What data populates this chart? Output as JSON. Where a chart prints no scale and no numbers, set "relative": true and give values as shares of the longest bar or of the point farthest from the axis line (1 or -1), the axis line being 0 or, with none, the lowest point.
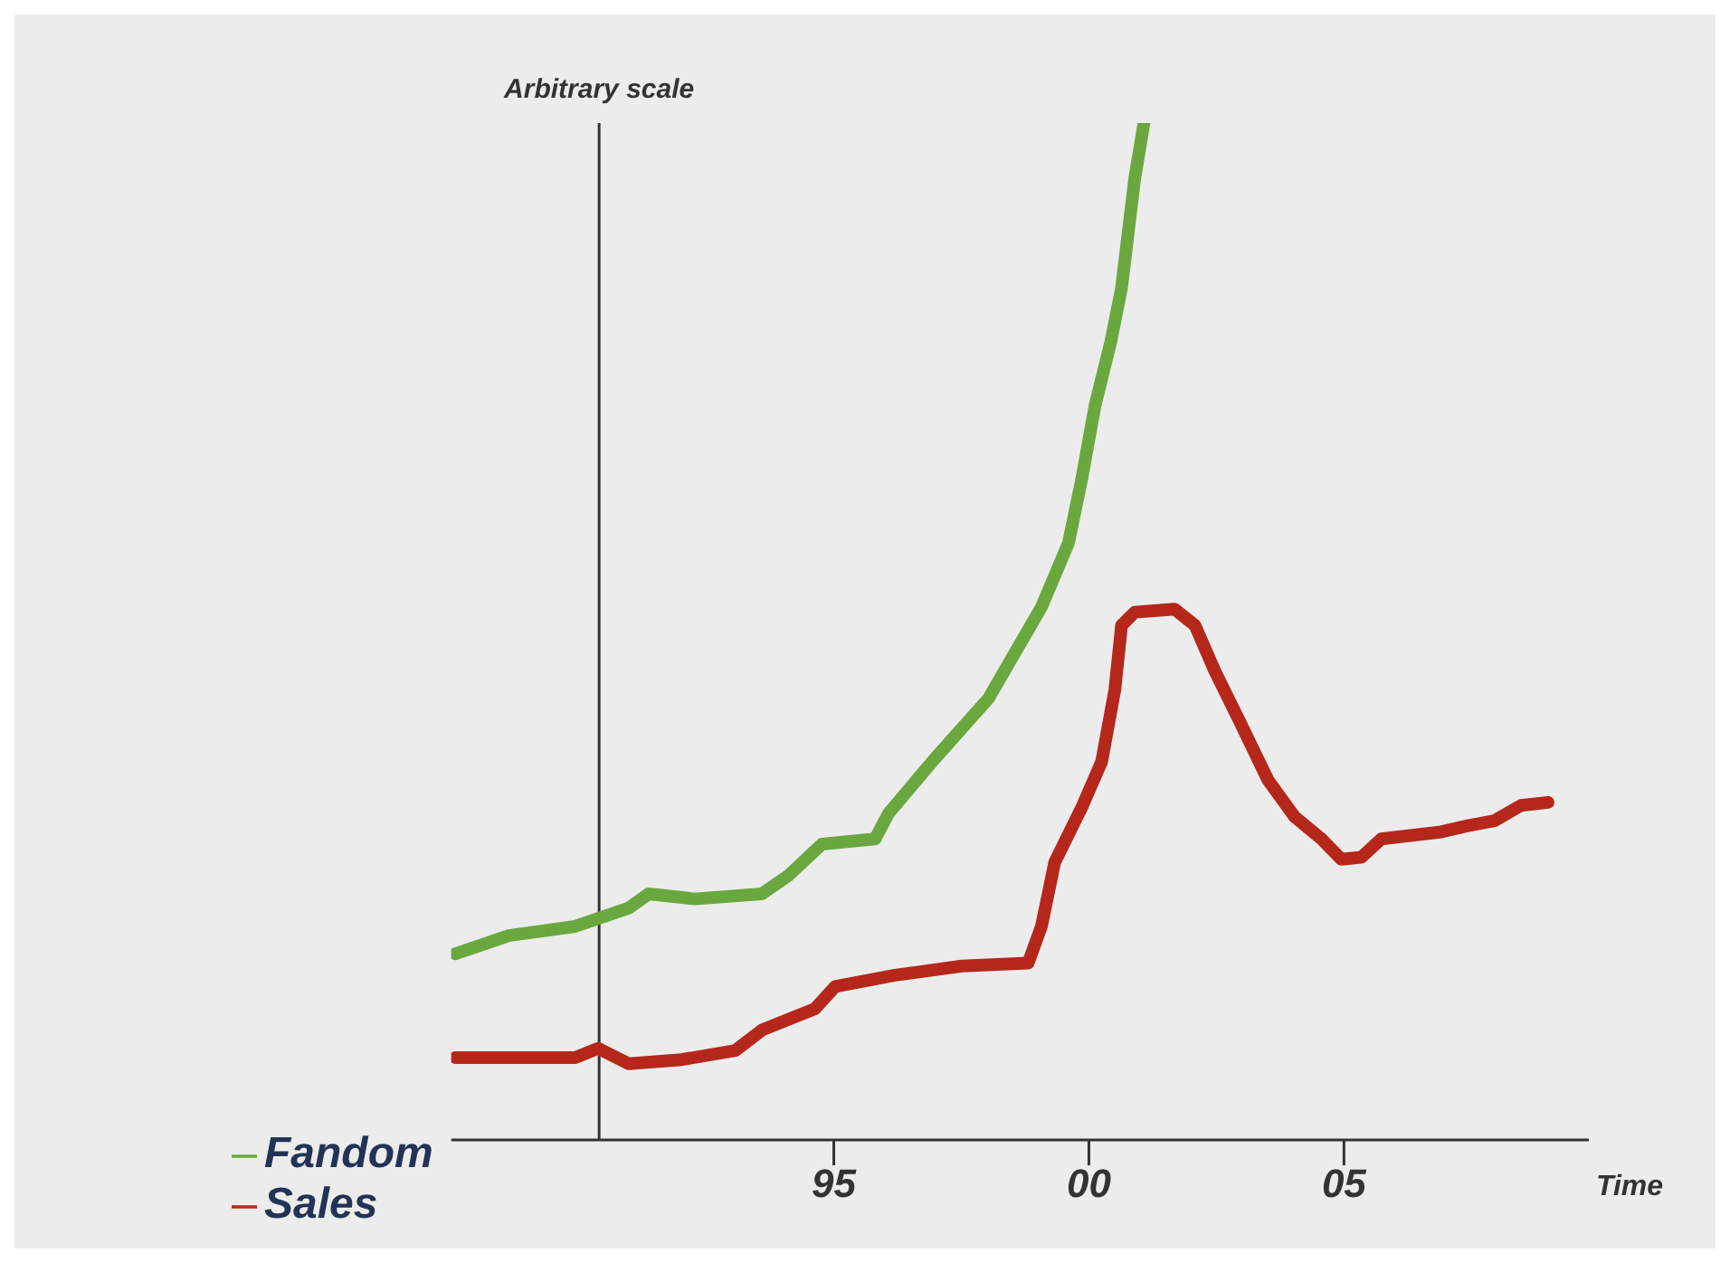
{
  "chart_data": {
    "type": "line",
    "relative": true,
    "xlabel": "Time",
    "ylabel": "Arbitrary scale",
    "xlim": [
      1987.5,
      2009.8
    ],
    "xticks": [
      {
        "value": 1995,
        "label": "95"
      },
      {
        "value": 2000,
        "label": "00"
      },
      {
        "value": 2005,
        "label": "05"
      }
    ],
    "ref_lines": [
      {
        "axis": "x",
        "value": 1990.4,
        "color": "#333333"
      }
    ],
    "legend": "bottom left",
    "grid": false,
    "marker": "none",
    "line_style": "solid",
    "series": [
      {
        "name": "Sales",
        "color": "#b5271b",
        "x": [
          1987.58,
          1989.93,
          1990.38,
          1990.98,
          1992.02,
          1993.07,
          1993.59,
          1994.63,
          1995.03,
          1996.2,
          1997.51,
          1998.81,
          1999.07,
          1999.33,
          1999.86,
          2000.25,
          2000.51,
          2000.64,
          2000.9,
          2001.68,
          2002.08,
          2002.47,
          2002.99,
          2003.51,
          2004.03,
          2004.56,
          2004.95,
          2005.34,
          2005.73,
          2006.91,
          2007.43,
          2007.95,
          2008.47,
          2009.0
        ],
        "values": [
          0.081,
          0.081,
          0.09,
          0.075,
          0.079,
          0.088,
          0.108,
          0.129,
          0.151,
          0.162,
          0.171,
          0.174,
          0.21,
          0.273,
          0.327,
          0.372,
          0.443,
          0.506,
          0.519,
          0.522,
          0.506,
          0.461,
          0.408,
          0.354,
          0.318,
          0.296,
          0.276,
          0.278,
          0.296,
          0.303,
          0.309,
          0.314,
          0.329,
          0.332
        ]
      },
      {
        "name": "Fandom",
        "color": "#6aa83f",
        "x": [
          1987.58,
          1988.63,
          1989.93,
          1990.98,
          1991.37,
          1992.28,
          1993.59,
          1994.11,
          1994.77,
          1995.81,
          1996.07,
          1996.98,
          1998.03,
          1998.55,
          1999.07,
          1999.6,
          1999.86,
          2000.12,
          2000.43,
          2000.64,
          2000.77,
          2000.9,
          2001.08
        ],
        "values": [
          0.183,
          0.201,
          0.21,
          0.228,
          0.242,
          0.237,
          0.242,
          0.26,
          0.291,
          0.296,
          0.321,
          0.375,
          0.434,
          0.479,
          0.524,
          0.587,
          0.65,
          0.722,
          0.785,
          0.838,
          0.892,
          0.946,
          1
        ]
      }
    ]
  }
}
